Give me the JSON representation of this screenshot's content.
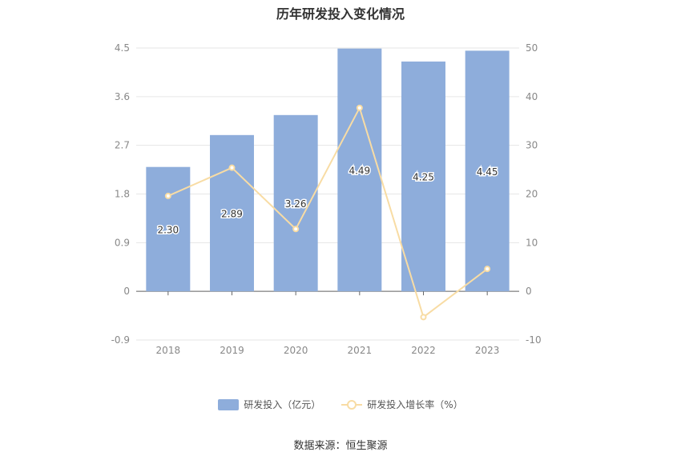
{
  "chart_data": {
    "type": "bar",
    "title": "历年研发投入变化情况",
    "categories": [
      "2018",
      "2019",
      "2020",
      "2021",
      "2022",
      "2023"
    ],
    "series": [
      {
        "name": "研发投入（亿元）",
        "type": "bar",
        "axis": "left",
        "values": [
          2.3,
          2.89,
          3.26,
          4.49,
          4.25,
          4.45
        ],
        "labels": [
          "2.30",
          "2.89",
          "3.26",
          "4.49",
          "4.25",
          "4.45"
        ],
        "color": "#8eaddb"
      },
      {
        "name": "研发投入增长率（%）",
        "type": "line",
        "axis": "right",
        "values": [
          19.6,
          25.4,
          12.8,
          37.7,
          -5.3,
          4.6
        ],
        "color": "#f8dca4"
      }
    ],
    "y_left": {
      "min": -0.9,
      "max": 4.5,
      "ticks": [
        "-0.9",
        "0",
        "0.9",
        "1.8",
        "2.7",
        "3.6",
        "4.5"
      ]
    },
    "y_right": {
      "min": -10,
      "max": 50,
      "ticks": [
        "-10",
        "0",
        "10",
        "20",
        "30",
        "40",
        "50"
      ]
    },
    "grid": true,
    "legend_position": "bottom"
  },
  "source_text": "数据来源：恒生聚源"
}
